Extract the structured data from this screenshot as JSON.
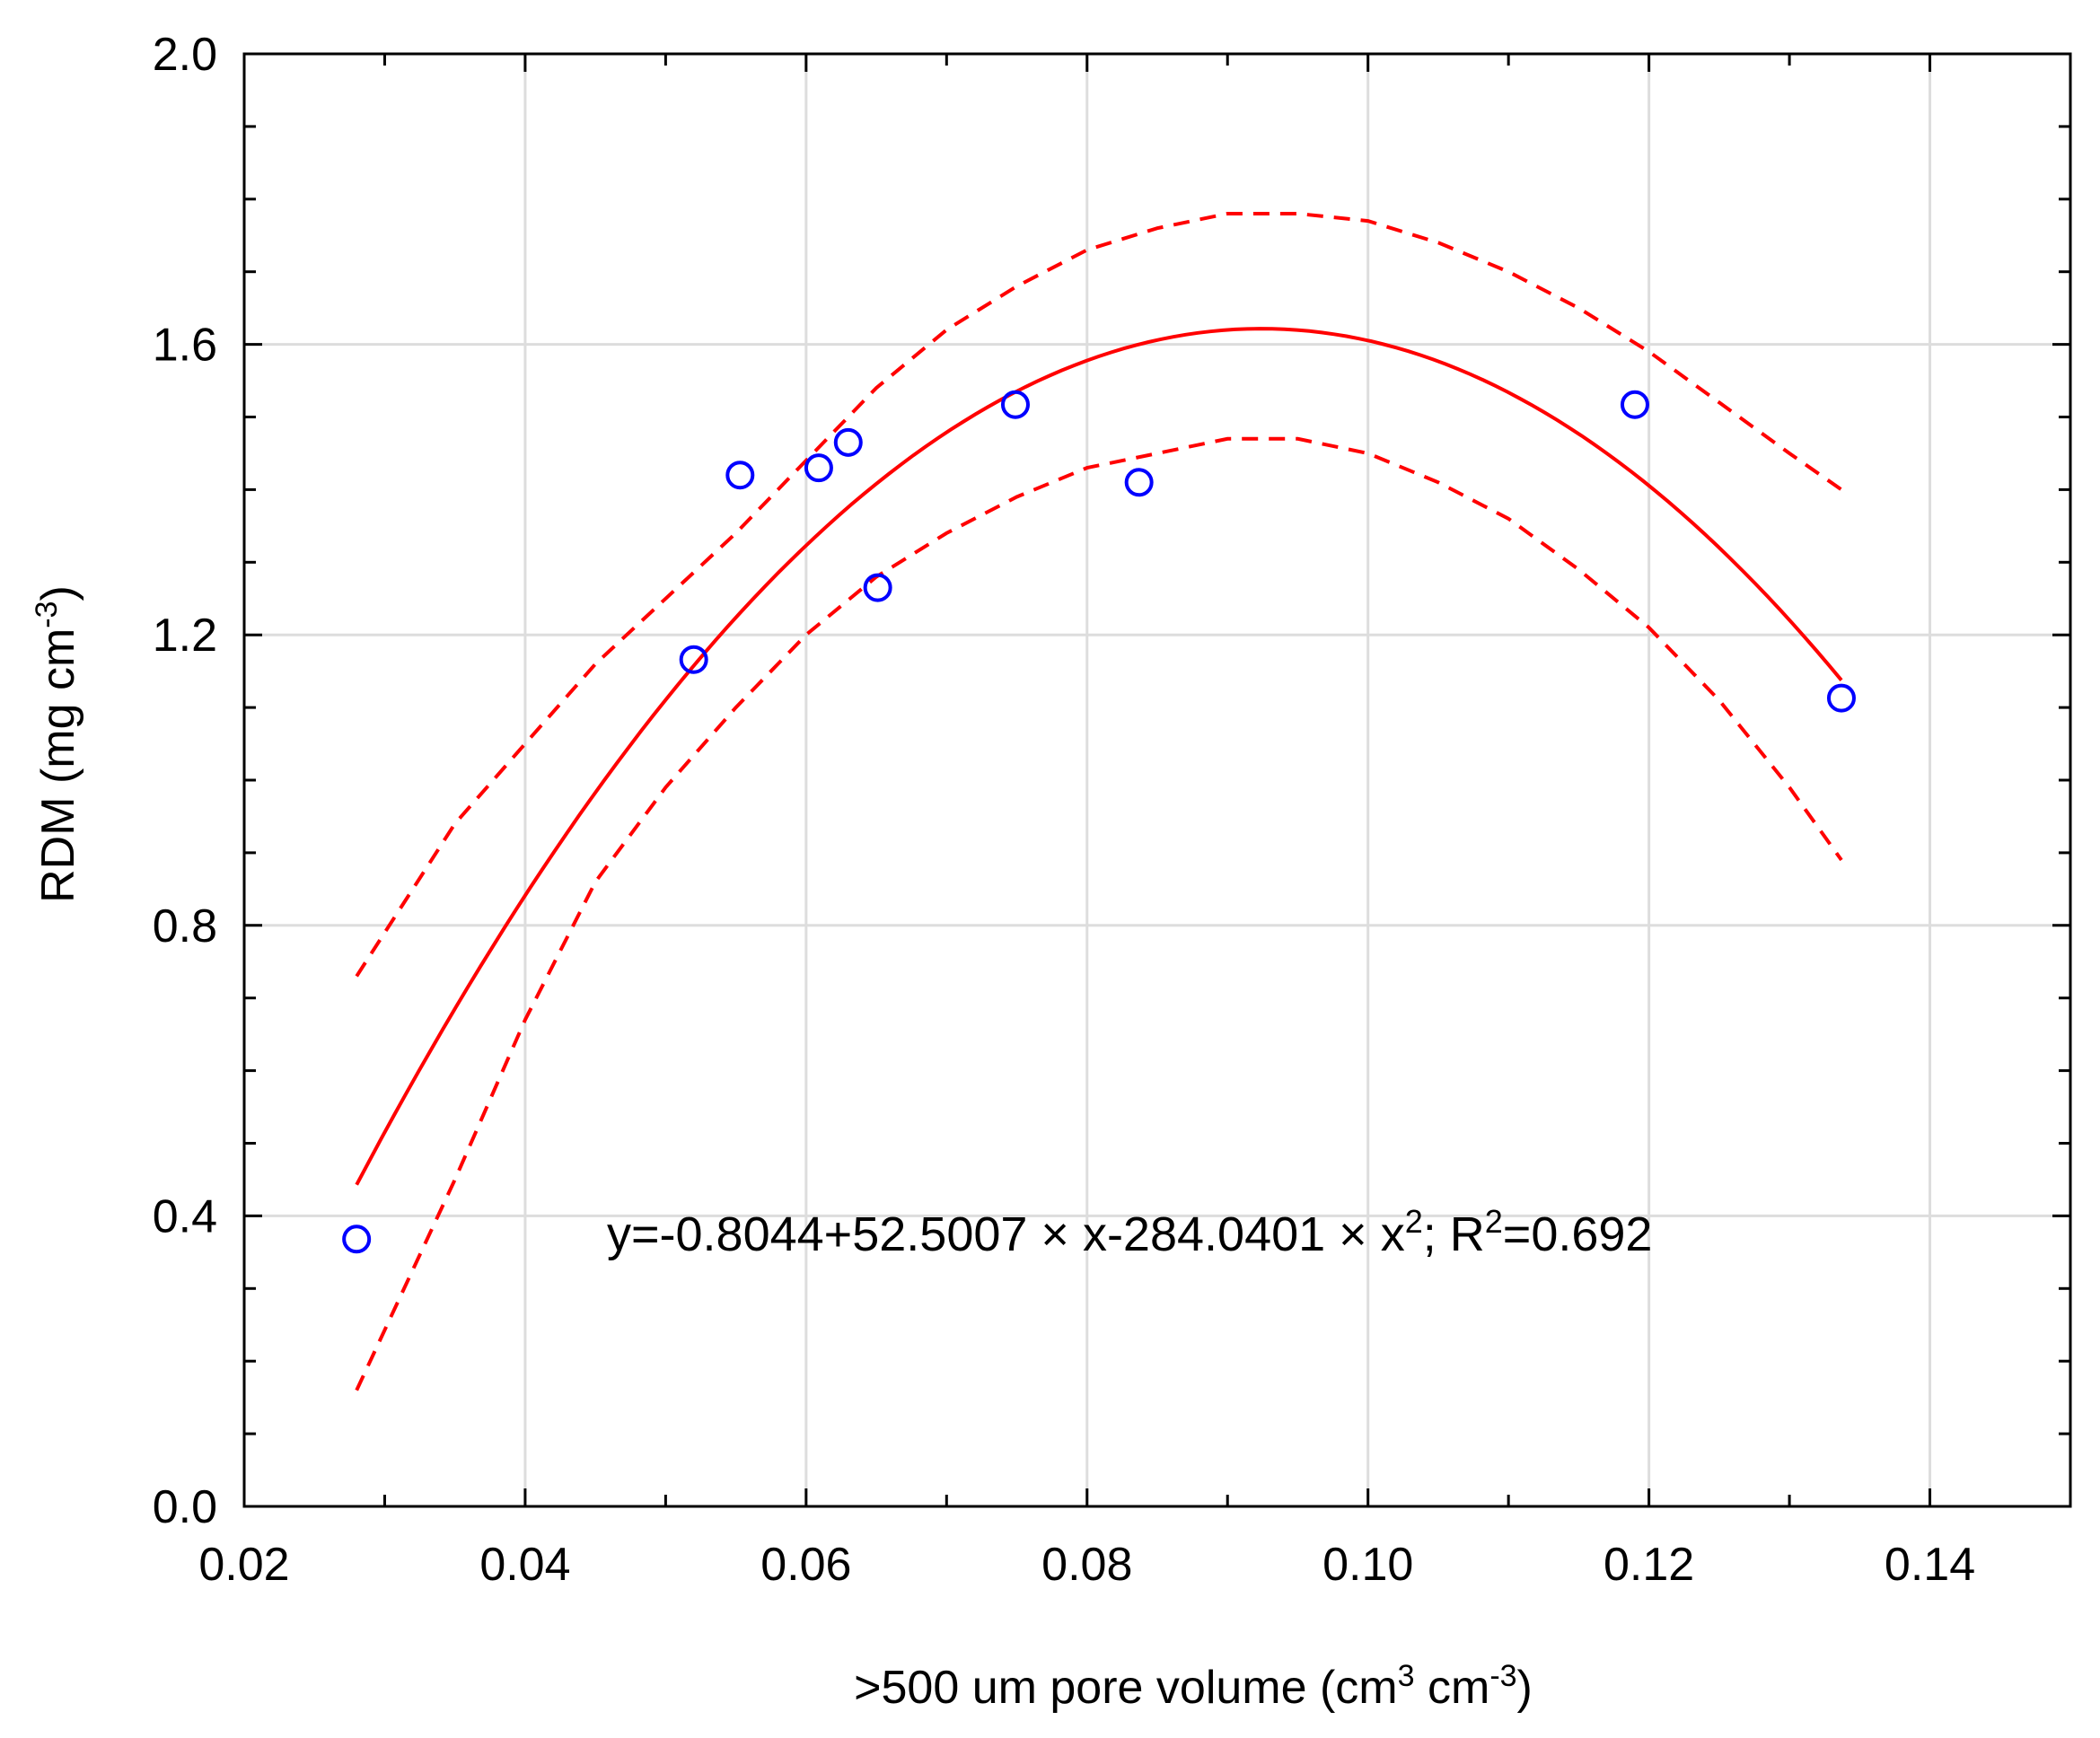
{
  "chart_data": {
    "type": "scatter",
    "title": "",
    "xlabel": {
      "prefix": ">500 um pore volume (cm",
      "sup1": "3",
      "mid": " cm",
      "sup2": "-3",
      "suffix": ")"
    },
    "ylabel": {
      "prefix": "RDM (mg cm",
      "sup": "-3",
      "suffix": ")"
    },
    "xlim": [
      0.02,
      0.15
    ],
    "ylim": [
      0.0,
      2.0
    ],
    "x_ticks": [
      0.02,
      0.04,
      0.06,
      0.08,
      0.1,
      0.12,
      0.14
    ],
    "x_tick_labels": [
      "0.02",
      "0.04",
      "0.06",
      "0.08",
      "0.10",
      "0.12",
      "0.14"
    ],
    "y_ticks": [
      0.0,
      0.4,
      0.8,
      1.2,
      1.6,
      2.0
    ],
    "y_tick_labels": [
      "0.0",
      "0.4",
      "0.8",
      "1.2",
      "1.6",
      "2.0"
    ],
    "grid": true,
    "points": [
      {
        "x": 0.028,
        "y": 0.368
      },
      {
        "x": 0.052,
        "y": 1.166
      },
      {
        "x": 0.0553,
        "y": 1.42
      },
      {
        "x": 0.0609,
        "y": 1.43
      },
      {
        "x": 0.063,
        "y": 1.465
      },
      {
        "x": 0.0651,
        "y": 1.265
      },
      {
        "x": 0.0749,
        "y": 1.517
      },
      {
        "x": 0.0837,
        "y": 1.41
      },
      {
        "x": 0.119,
        "y": 1.517
      },
      {
        "x": 0.1337,
        "y": 1.113
      }
    ],
    "fit": {
      "type": "quadratic",
      "coefficients": [
        -0.8044,
        52.5007,
        -284.0401
      ],
      "x_range": [
        0.028,
        0.1337
      ]
    },
    "confidence_band": {
      "x": [
        0.028,
        0.035,
        0.04,
        0.045,
        0.05,
        0.055,
        0.06,
        0.065,
        0.07,
        0.075,
        0.08,
        0.085,
        0.09,
        0.095,
        0.1,
        0.105,
        0.11,
        0.115,
        0.12,
        0.125,
        0.13,
        0.1337
      ],
      "upper": [
        0.73,
        0.94,
        1.05,
        1.16,
        1.25,
        1.34,
        1.44,
        1.54,
        1.62,
        1.68,
        1.73,
        1.76,
        1.78,
        1.78,
        1.77,
        1.74,
        1.7,
        1.65,
        1.59,
        1.52,
        1.45,
        1.4
      ],
      "lower": [
        0.16,
        0.45,
        0.67,
        0.86,
        0.99,
        1.1,
        1.2,
        1.28,
        1.34,
        1.39,
        1.43,
        1.45,
        1.47,
        1.47,
        1.45,
        1.41,
        1.36,
        1.29,
        1.21,
        1.11,
        0.99,
        0.89
      ]
    },
    "equation": {
      "part1": "y=-0.8044+52.5007 × x-284.0401 × x",
      "sup1": "2",
      "part2": "; R",
      "sup2": "2",
      "part3": "=0.692"
    },
    "colors": {
      "points": "#0000ff",
      "fit": "#ff0000",
      "band": "#ff0000",
      "grid": "#dddddd",
      "axis": "#000000"
    }
  }
}
